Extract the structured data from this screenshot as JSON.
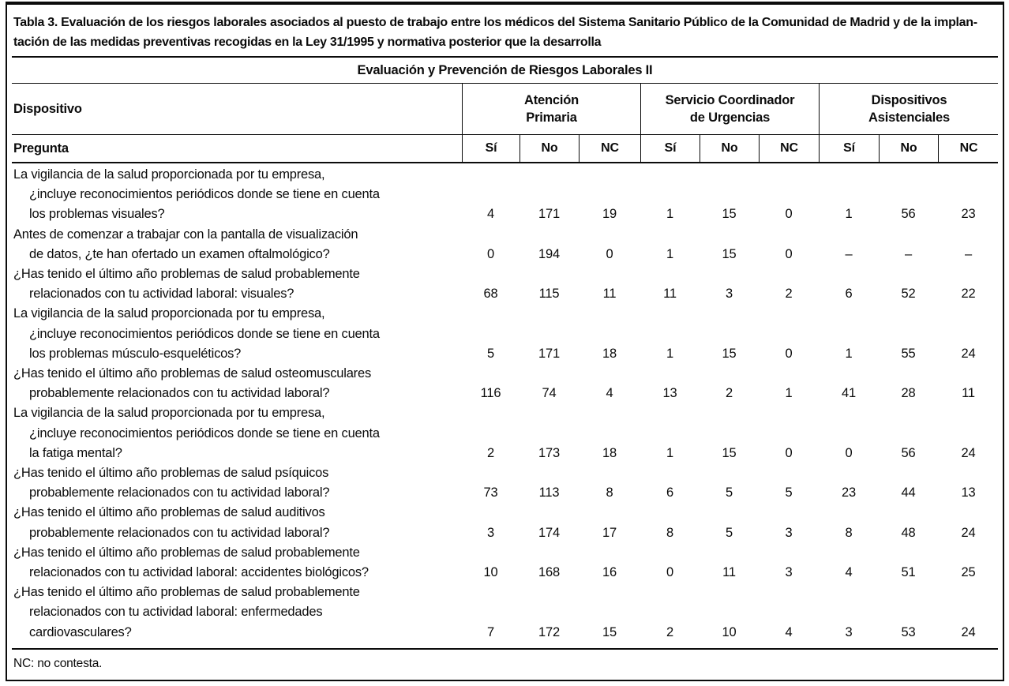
{
  "title": {
    "line1": "Tabla 3. Evaluación de los riesgos laborales asociados al puesto de trabajo entre los médicos del Sistema Sanitario Público de la Comunidad de Madrid y de la implan-",
    "line2": "tación de las medidas preventivas recogidas en la Ley 31/1995 y normativa posterior que la desarrolla"
  },
  "subtitle": "Evaluación y Prevención de Riesgos Laborales II",
  "headers": {
    "device_label": "Dispositivo",
    "question_label": "Pregunta",
    "groups": [
      {
        "line1": "Atención",
        "line2": "Primaria"
      },
      {
        "line1": "Servicio Coordinador",
        "line2": "de Urgencias"
      },
      {
        "line1": "Dispositivos",
        "line2": "Asistenciales"
      }
    ],
    "sub": [
      "Sí",
      "No",
      "NC"
    ]
  },
  "rows": [
    {
      "lines": [
        "La vigilancia de la salud proporcionada por tu empresa,",
        "¿incluye reconocimientos periódicos donde se tiene en cuenta",
        "los problemas visuales?"
      ],
      "values": [
        "4",
        "171",
        "19",
        "1",
        "15",
        "0",
        "1",
        "56",
        "23"
      ]
    },
    {
      "lines": [
        "Antes de comenzar a trabajar con la pantalla de visualización",
        "de datos, ¿te han ofertado un examen oftalmológico?"
      ],
      "values": [
        "0",
        "194",
        "0",
        "1",
        "15",
        "0",
        "–",
        "–",
        "–"
      ]
    },
    {
      "lines": [
        "¿Has tenido el último año problemas de salud probablemente",
        "relacionados con tu actividad laboral: visuales?"
      ],
      "values": [
        "68",
        "115",
        "11",
        "11",
        "3",
        "2",
        "6",
        "52",
        "22"
      ]
    },
    {
      "lines": [
        "La vigilancia de la salud proporcionada por tu empresa,",
        "¿incluye reconocimientos periódicos donde se tiene en cuenta",
        "los problemas músculo-esqueléticos?"
      ],
      "values": [
        "5",
        "171",
        "18",
        "1",
        "15",
        "0",
        "1",
        "55",
        "24"
      ]
    },
    {
      "lines": [
        "¿Has tenido el último año problemas de salud osteomusculares",
        "probablemente relacionados con tu actividad laboral?"
      ],
      "values": [
        "116",
        "74",
        "4",
        "13",
        "2",
        "1",
        "41",
        "28",
        "11"
      ]
    },
    {
      "lines": [
        "La vigilancia de la salud proporcionada por tu empresa,",
        "¿incluye reconocimientos periódicos donde se tiene en cuenta",
        "la fatiga mental?"
      ],
      "values": [
        "2",
        "173",
        "18",
        "1",
        "15",
        "0",
        "0",
        "56",
        "24"
      ]
    },
    {
      "lines": [
        "¿Has tenido el último año problemas de salud psíquicos",
        "probablemente relacionados con tu actividad laboral?"
      ],
      "values": [
        "73",
        "113",
        "8",
        "6",
        "5",
        "5",
        "23",
        "44",
        "13"
      ]
    },
    {
      "lines": [
        "¿Has tenido el último año problemas de salud auditivos",
        "probablemente relacionados con tu actividad laboral?"
      ],
      "values": [
        "3",
        "174",
        "17",
        "8",
        "5",
        "3",
        "8",
        "48",
        "24"
      ]
    },
    {
      "lines": [
        "¿Has tenido el último año problemas de salud probablemente",
        "relacionados con tu actividad laboral: accidentes biológicos?"
      ],
      "values": [
        "10",
        "168",
        "16",
        "0",
        "11",
        "3",
        "4",
        "51",
        "25"
      ]
    },
    {
      "lines": [
        "¿Has tenido el último año problemas de salud probablemente",
        "relacionados con tu actividad laboral: enfermedades",
        "cardiovasculares?"
      ],
      "values": [
        "7",
        "172",
        "15",
        "2",
        "10",
        "4",
        "3",
        "53",
        "24"
      ]
    }
  ],
  "footnote": "NC: no contesta.",
  "colors": {
    "text": "#0b0b0b",
    "background": "#ffffff",
    "border": "#0b0b0b"
  }
}
